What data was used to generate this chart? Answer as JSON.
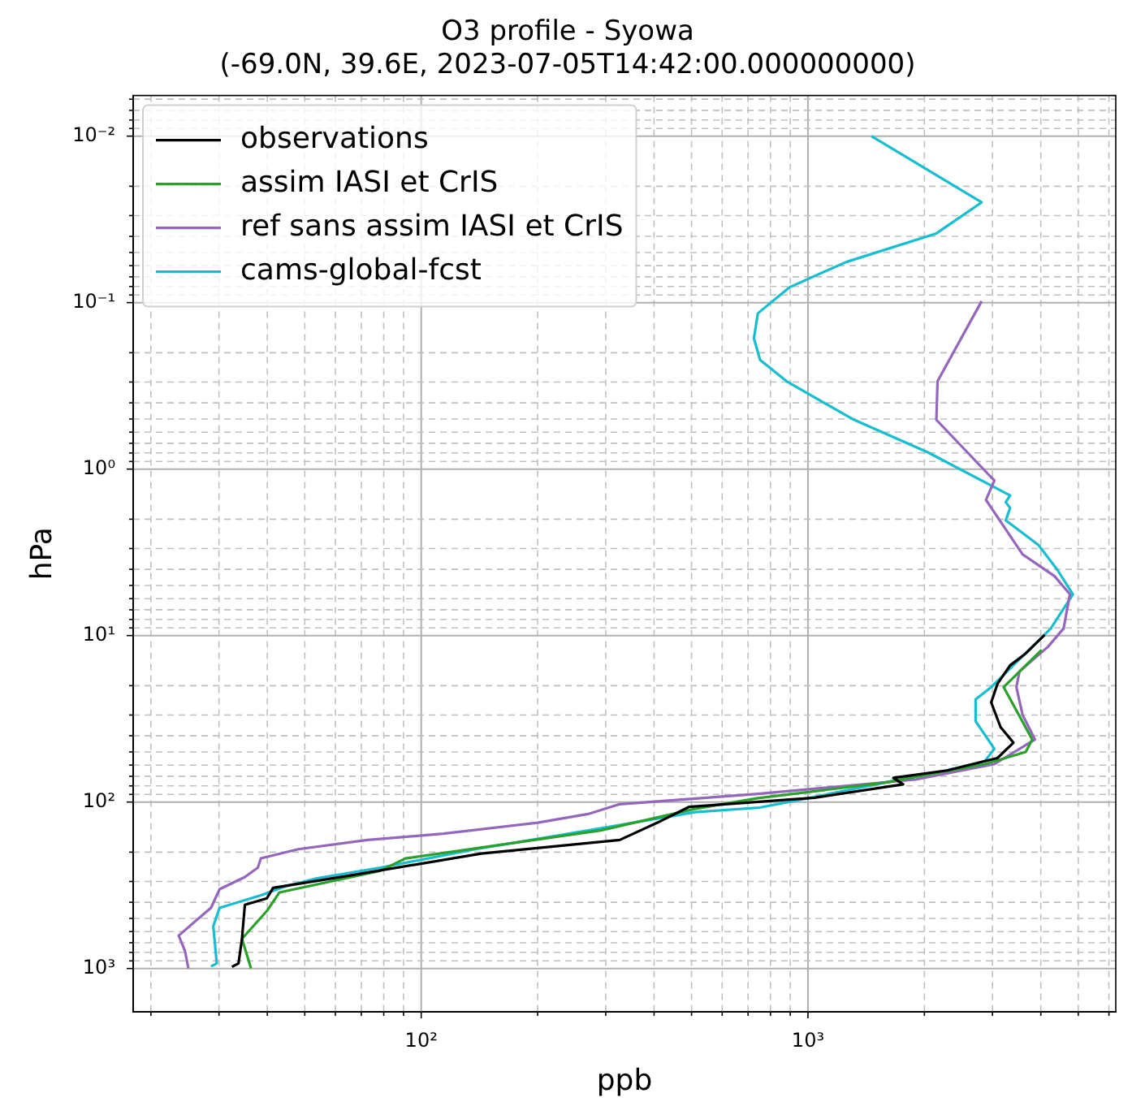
{
  "chart_data": {
    "type": "line",
    "title": "O3 profile - Syowa\n(-69.0N, 39.6E, 2023-07-05T14:42:00.000000000)",
    "xlabel": "ppb",
    "ylabel": "hPa",
    "log": "xy",
    "grid": true,
    "legend": "top left",
    "line_style": "solid",
    "marker": "none",
    "xlim": [
      18,
      6250
    ],
    "ylim": [
      1820,
      0.0057
    ],
    "xticks": [
      {
        "value": 20,
        "label": null
      },
      {
        "value": 30,
        "label": null
      },
      {
        "value": 40,
        "label": null
      },
      {
        "value": 50,
        "label": null
      },
      {
        "value": 60,
        "label": null
      },
      {
        "value": 70,
        "label": null
      },
      {
        "value": 80,
        "label": null
      },
      {
        "value": 90,
        "label": null
      },
      {
        "value": 100,
        "label": "10²"
      },
      {
        "value": 200,
        "label": null
      },
      {
        "value": 300,
        "label": null
      },
      {
        "value": 400,
        "label": null
      },
      {
        "value": 500,
        "label": null
      },
      {
        "value": 600,
        "label": null
      },
      {
        "value": 700,
        "label": null
      },
      {
        "value": 800,
        "label": null
      },
      {
        "value": 900,
        "label": null
      },
      {
        "value": 1000,
        "label": "10³"
      },
      {
        "value": 2000,
        "label": null
      },
      {
        "value": 3000,
        "label": null
      },
      {
        "value": 4000,
        "label": null
      },
      {
        "value": 5000,
        "label": null
      },
      {
        "value": 6000,
        "label": null
      }
    ],
    "yticks": [
      {
        "value": 0.006,
        "label": null
      },
      {
        "value": 0.007,
        "label": null
      },
      {
        "value": 0.008,
        "label": null
      },
      {
        "value": 0.009,
        "label": null
      },
      {
        "value": 0.01,
        "label": "10⁻²"
      },
      {
        "value": 0.02,
        "label": null
      },
      {
        "value": 0.03,
        "label": null
      },
      {
        "value": 0.04,
        "label": null
      },
      {
        "value": 0.05,
        "label": null
      },
      {
        "value": 0.06,
        "label": null
      },
      {
        "value": 0.07,
        "label": null
      },
      {
        "value": 0.08,
        "label": null
      },
      {
        "value": 0.09,
        "label": null
      },
      {
        "value": 0.1,
        "label": "10⁻¹"
      },
      {
        "value": 0.2,
        "label": null
      },
      {
        "value": 0.3,
        "label": null
      },
      {
        "value": 0.4,
        "label": null
      },
      {
        "value": 0.5,
        "label": null
      },
      {
        "value": 0.6,
        "label": null
      },
      {
        "value": 0.7,
        "label": null
      },
      {
        "value": 0.8,
        "label": null
      },
      {
        "value": 0.9,
        "label": null
      },
      {
        "value": 1,
        "label": "10⁰"
      },
      {
        "value": 2,
        "label": null
      },
      {
        "value": 3,
        "label": null
      },
      {
        "value": 4,
        "label": null
      },
      {
        "value": 5,
        "label": null
      },
      {
        "value": 6,
        "label": null
      },
      {
        "value": 7,
        "label": null
      },
      {
        "value": 8,
        "label": null
      },
      {
        "value": 9,
        "label": null
      },
      {
        "value": 10,
        "label": "10¹"
      },
      {
        "value": 20,
        "label": null
      },
      {
        "value": 30,
        "label": null
      },
      {
        "value": 40,
        "label": null
      },
      {
        "value": 50,
        "label": null
      },
      {
        "value": 60,
        "label": null
      },
      {
        "value": 70,
        "label": null
      },
      {
        "value": 80,
        "label": null
      },
      {
        "value": 90,
        "label": null
      },
      {
        "value": 100,
        "label": "10²"
      },
      {
        "value": 200,
        "label": null
      },
      {
        "value": 300,
        "label": null
      },
      {
        "value": 400,
        "label": null
      },
      {
        "value": 500,
        "label": null
      },
      {
        "value": 600,
        "label": null
      },
      {
        "value": 700,
        "label": null
      },
      {
        "value": 800,
        "label": null
      },
      {
        "value": 900,
        "label": null
      },
      {
        "value": 1000,
        "label": "10³"
      }
    ],
    "series": [
      {
        "name": "observations",
        "color": "#000000",
        "x": [
          4093,
          3656,
          3332,
          3090,
          2977,
          3148,
          3398,
          3090,
          2290,
          1663,
          1762,
          1040,
          492,
          408,
          326,
          143,
          64.9,
          41.4,
          39.9,
          35.0,
          34.4,
          33.7,
          32.4
        ],
        "values": [
          9.9,
          12.8,
          15.1,
          19.5,
          25.2,
          35.5,
          44,
          54.4,
          64.6,
          71.6,
          78.3,
          94.2,
          107,
          133,
          169,
          204,
          277,
          328,
          379,
          414,
          662,
          931,
          977
        ]
      },
      {
        "name": "assim IASI et CrIS",
        "color": "#2ca02c",
        "x": [
          4019,
          3207,
          3802,
          3656,
          2866,
          1574,
          742,
          510,
          291,
          91,
          78.3,
          43.0,
          39.9,
          34.4,
          36.3
        ],
        "values": [
          12.2,
          20.4,
          42.1,
          50,
          59.2,
          76.5,
          94.8,
          110,
          148,
          218,
          259,
          349,
          451,
          662,
          998
        ]
      },
      {
        "name": "ref sans assim IASI et CrIS",
        "color": "#9467bd",
        "x": [
          2812,
          2163,
          2148,
          2977,
          3034,
          2886,
          3588,
          4337,
          4756,
          4582,
          4172,
          3524,
          3459,
          3588,
          3864,
          3034,
          1897,
          742,
          326,
          270,
          200,
          114,
          72.6,
          48.1,
          38.5,
          37.8,
          35.0,
          30.1,
          28.6,
          23.6,
          24.5,
          25.0
        ],
        "values": [
          0.098,
          0.297,
          0.506,
          1.12,
          1.17,
          1.53,
          3.25,
          4.39,
          5.65,
          9.06,
          11.7,
          16.4,
          20.4,
          29.9,
          42.1,
          59.2,
          73.3,
          89.3,
          103,
          118,
          133,
          155,
          169,
          192,
          218,
          248,
          282,
          334,
          432,
          634,
          785,
          998
        ]
      },
      {
        "name": "cams-global-fcst",
        "color": "#17becf",
        "x": [
          1459,
          2812,
          2148,
          1256,
          895,
          742,
          725,
          752,
          881,
          1303,
          2046,
          3332,
          3246,
          3332,
          3246,
          3945,
          4415,
          4842,
          4246,
          3588,
          2977,
          2713,
          2713,
          3034,
          2866,
          2290,
          1574,
          1002,
          750,
          510,
          241,
          138,
          78.3,
          53.8,
          44.7,
          38.5,
          30.1,
          29.0,
          29.6,
          28.6
        ],
        "values": [
          0.01,
          0.025,
          0.0384,
          0.057,
          0.081,
          0.116,
          0.164,
          0.221,
          0.297,
          0.5,
          0.795,
          1.44,
          1.58,
          1.71,
          2.03,
          2.86,
          4.03,
          5.65,
          9.06,
          13.3,
          20.4,
          24.2,
          32.7,
          47.9,
          56.8,
          64.6,
          76.5,
          94.8,
          108,
          115,
          155,
          192,
          248,
          287,
          320,
          363,
          432,
          557,
          931,
          971
        ]
      }
    ]
  }
}
